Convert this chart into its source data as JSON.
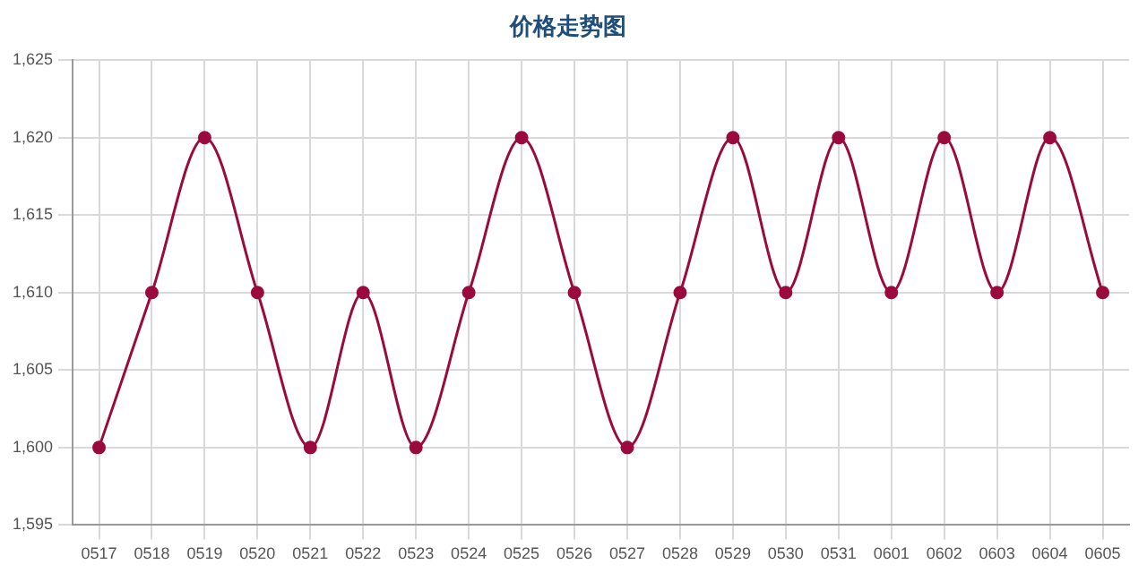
{
  "chart_data": {
    "type": "line",
    "title": "价格走势图",
    "categories": [
      "0517",
      "0518",
      "0519",
      "0520",
      "0521",
      "0522",
      "0523",
      "0524",
      "0525",
      "0526",
      "0527",
      "0528",
      "0529",
      "0530",
      "0531",
      "0601",
      "0602",
      "0603",
      "0604",
      "0605"
    ],
    "series": [
      {
        "color": "#9b0a3c",
        "values": [
          1600,
          1610,
          1620,
          1610,
          1600,
          1610,
          1600,
          1610,
          1620,
          1610,
          1600,
          1610,
          1620,
          1610,
          1620,
          1610,
          1620,
          1610,
          1620,
          1610
        ]
      }
    ],
    "ylim": [
      1595,
      1625
    ],
    "yticks": [
      {
        "value": 1595,
        "label": "1,595"
      },
      {
        "value": 1600,
        "label": "1,600"
      },
      {
        "value": 1605,
        "label": "1,605"
      },
      {
        "value": 1610,
        "label": "1,610"
      },
      {
        "value": 1615,
        "label": "1,615"
      },
      {
        "value": 1620,
        "label": "1,620"
      },
      {
        "value": 1625,
        "label": "1,625"
      }
    ],
    "grid": true,
    "legend": false,
    "marker": "circle",
    "line_style": "solid"
  }
}
